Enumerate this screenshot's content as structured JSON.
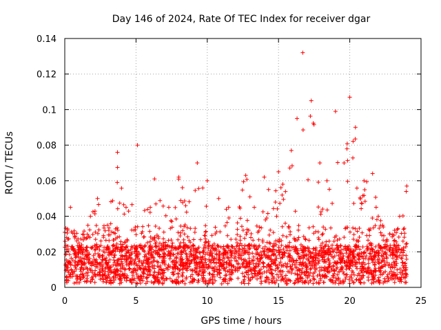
{
  "chart_data": {
    "type": "scatter",
    "title": "Day 146 of 2024, Rate Of TEC Index for receiver dgar",
    "xlabel": "GPS time / hours",
    "ylabel": "ROTI / TECUs",
    "xlim": [
      0,
      25
    ],
    "ylim": [
      0,
      0.14
    ],
    "xticks": [
      0,
      5,
      10,
      15,
      20,
      25
    ],
    "yticks": [
      0,
      0.02,
      0.04,
      0.06,
      0.08,
      0.1,
      0.12,
      0.14
    ],
    "xtick_labels": [
      "0",
      "5",
      "10",
      "15",
      "20",
      "25"
    ],
    "ytick_labels": [
      "0",
      "0.02",
      "0.04",
      "0.06",
      "0.08",
      "0.1",
      "0.12",
      "0.14"
    ],
    "grid": true,
    "marker": "+",
    "color": "#ff0000",
    "x_data_range": [
      0,
      24
    ],
    "envelope_x": [
      0,
      0.4,
      1.0,
      1.8,
      2.3,
      3.0,
      3.7,
      4.3,
      5.1,
      6.0,
      6.3,
      7.3,
      8.0,
      9.3,
      10.0,
      10.8,
      11.5,
      12.7,
      13.3,
      14.0,
      14.3,
      15.0,
      15.3,
      15.9,
      16.3,
      16.7,
      17.3,
      17.9,
      18.4,
      19.0,
      19.6,
      20.0,
      20.4,
      21.0,
      21.6,
      22.0,
      22.8,
      23.5,
      24.0
    ],
    "envelope_y": [
      0.031,
      0.045,
      0.025,
      0.04,
      0.05,
      0.035,
      0.076,
      0.045,
      0.08,
      0.045,
      0.061,
      0.045,
      0.062,
      0.07,
      0.06,
      0.05,
      0.045,
      0.063,
      0.045,
      0.062,
      0.055,
      0.065,
      0.058,
      0.077,
      0.095,
      0.132,
      0.105,
      0.07,
      0.06,
      0.099,
      0.07,
      0.107,
      0.09,
      0.06,
      0.064,
      0.04,
      0.03,
      0.04,
      0.057
    ]
  }
}
